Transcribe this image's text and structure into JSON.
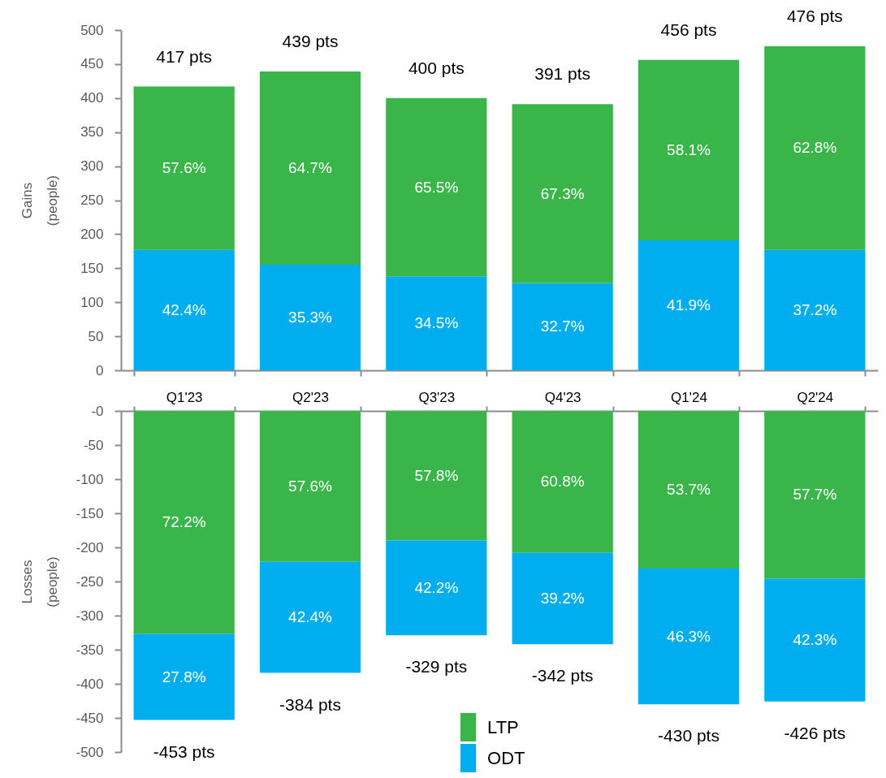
{
  "chart_data": [
    {
      "type": "bar",
      "stacked": true,
      "ylabel": "Gains\n(people)",
      "categories": [
        "Q1'23",
        "Q2'23",
        "Q3'23",
        "Q4'23",
        "Q1'24",
        "Q2'24"
      ],
      "tick_labels": "y",
      "series": [
        {
          "name": "ODT",
          "color": "#00aeef",
          "values": [
            177,
            155,
            138,
            128,
            191,
            177
          ]
        },
        {
          "name": "LTP",
          "color": "#39b54a",
          "values": [
            240,
            284,
            262,
            263,
            265,
            299
          ]
        }
      ],
      "totals": [
        "417 pts",
        "439 pts",
        "400 pts",
        "391 pts",
        "456 pts",
        "476 pts"
      ],
      "annotations": [
        "42.4%",
        "35.3%",
        "34.5%",
        "32.7%",
        "41.9%",
        "37.2%",
        "57.6%",
        "64.7%",
        "65.5%",
        "67.3%",
        "58.1%",
        "62.8%"
      ],
      "ylim": [
        0,
        500
      ],
      "yticks": [
        0,
        50,
        100,
        150,
        200,
        250,
        300,
        350,
        400,
        450,
        500
      ],
      "legend": "bottom"
    },
    {
      "type": "bar",
      "stacked": true,
      "ylabel": "Losses\n(people)",
      "categories": [
        "Q1'23",
        "Q2'23",
        "Q3'23",
        "Q4'23",
        "Q1'24",
        "Q2'24"
      ],
      "series": [
        {
          "name": "LTP",
          "color": "#39b54a",
          "values": [
            -327,
            -221,
            -190,
            -208,
            -231,
            -246
          ]
        },
        {
          "name": "ODT",
          "color": "#00aeef",
          "values": [
            -126,
            -163,
            -139,
            -134,
            -199,
            -180
          ]
        }
      ],
      "totals": [
        "-453 pts",
        "-384 pts",
        "-329 pts",
        "-342 pts",
        "-430 pts",
        "-426 pts"
      ],
      "annotations": [
        "72.2%",
        "57.6%",
        "57.8%",
        "60.8%",
        "53.7%",
        "57.7%",
        "27.8%",
        "42.4%",
        "42.2%",
        "39.2%",
        "46.3%",
        "42.3%"
      ],
      "ylim": [
        -500,
        0
      ],
      "yticks": [
        {
          "value": 0,
          "label": "-0"
        },
        -50,
        -100,
        -150,
        -200,
        -250,
        -300,
        -350,
        -400,
        -450,
        -500
      ],
      "legend": "bottom"
    }
  ]
}
